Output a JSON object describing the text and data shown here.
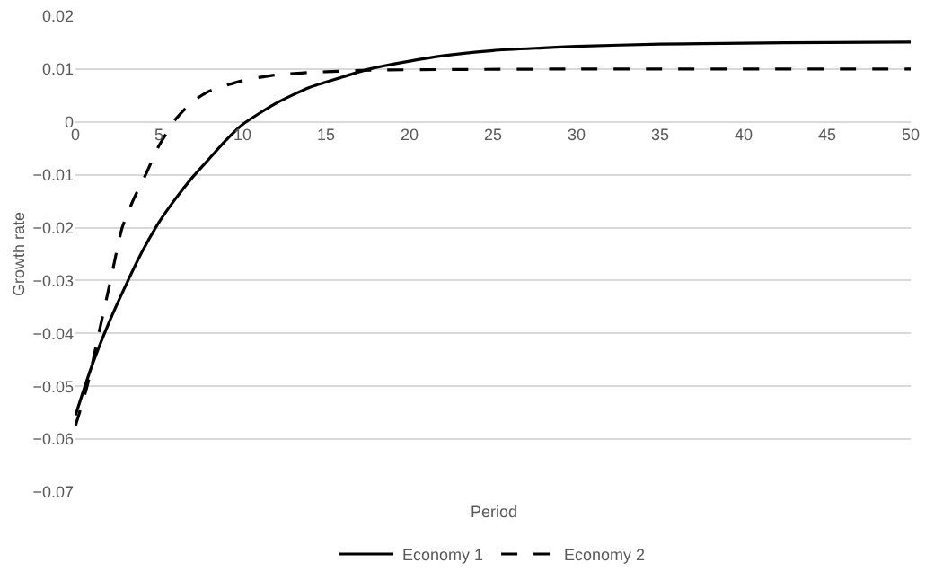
{
  "chart_data": {
    "type": "line",
    "xlabel": "Period",
    "ylabel": "Growth rate",
    "xlim": [
      0,
      50
    ],
    "xticks": [
      0,
      5,
      10,
      15,
      20,
      25,
      30,
      35,
      40,
      45,
      50
    ],
    "ylim": [
      -0.07,
      0.02
    ],
    "yticks": [
      {
        "value": -0.07,
        "label": "−0.07"
      },
      {
        "value": -0.06,
        "label": "−0.06"
      },
      {
        "value": -0.05,
        "label": "−0.05"
      },
      {
        "value": -0.04,
        "label": "−0.04"
      },
      {
        "value": -0.03,
        "label": "−0.03"
      },
      {
        "value": -0.02,
        "label": "−0.02"
      },
      {
        "value": -0.01,
        "label": "−0.01"
      },
      0,
      0.01,
      0.02
    ],
    "grid": "y",
    "legend": "bottom",
    "marker": "none",
    "series": [
      {
        "name": "Economy 1",
        "color": "#000000",
        "line_style": "solid",
        "x": [
          0,
          1,
          2,
          3,
          4,
          5,
          6,
          7,
          8,
          9,
          10,
          12,
          14,
          16,
          17,
          18,
          20,
          22,
          25,
          28,
          30,
          35,
          40,
          45,
          50
        ],
        "values": [
          -0.0555,
          -0.046,
          -0.038,
          -0.031,
          -0.0245,
          -0.019,
          -0.0145,
          -0.0105,
          -0.007,
          -0.0035,
          -0.0005,
          0.0035,
          0.0065,
          0.0085,
          0.0095,
          0.0103,
          0.0115,
          0.0125,
          0.0135,
          0.014,
          0.0143,
          0.0147,
          0.0149,
          0.015,
          0.0151
        ]
      },
      {
        "name": "Economy 2",
        "color": "#000000",
        "line_style": "dashed",
        "x": [
          0,
          0.7,
          1.4,
          2.1,
          2.8,
          3.5,
          4.2,
          5,
          6,
          7,
          8,
          10,
          12,
          15,
          18,
          22,
          30,
          50
        ],
        "values": [
          -0.0575,
          -0.05,
          -0.04,
          -0.03,
          -0.02,
          -0.0145,
          -0.01,
          -0.0045,
          0.0005,
          0.0038,
          0.0058,
          0.0078,
          0.0089,
          0.0095,
          0.0098,
          0.0099,
          0.01,
          0.01
        ]
      }
    ]
  }
}
